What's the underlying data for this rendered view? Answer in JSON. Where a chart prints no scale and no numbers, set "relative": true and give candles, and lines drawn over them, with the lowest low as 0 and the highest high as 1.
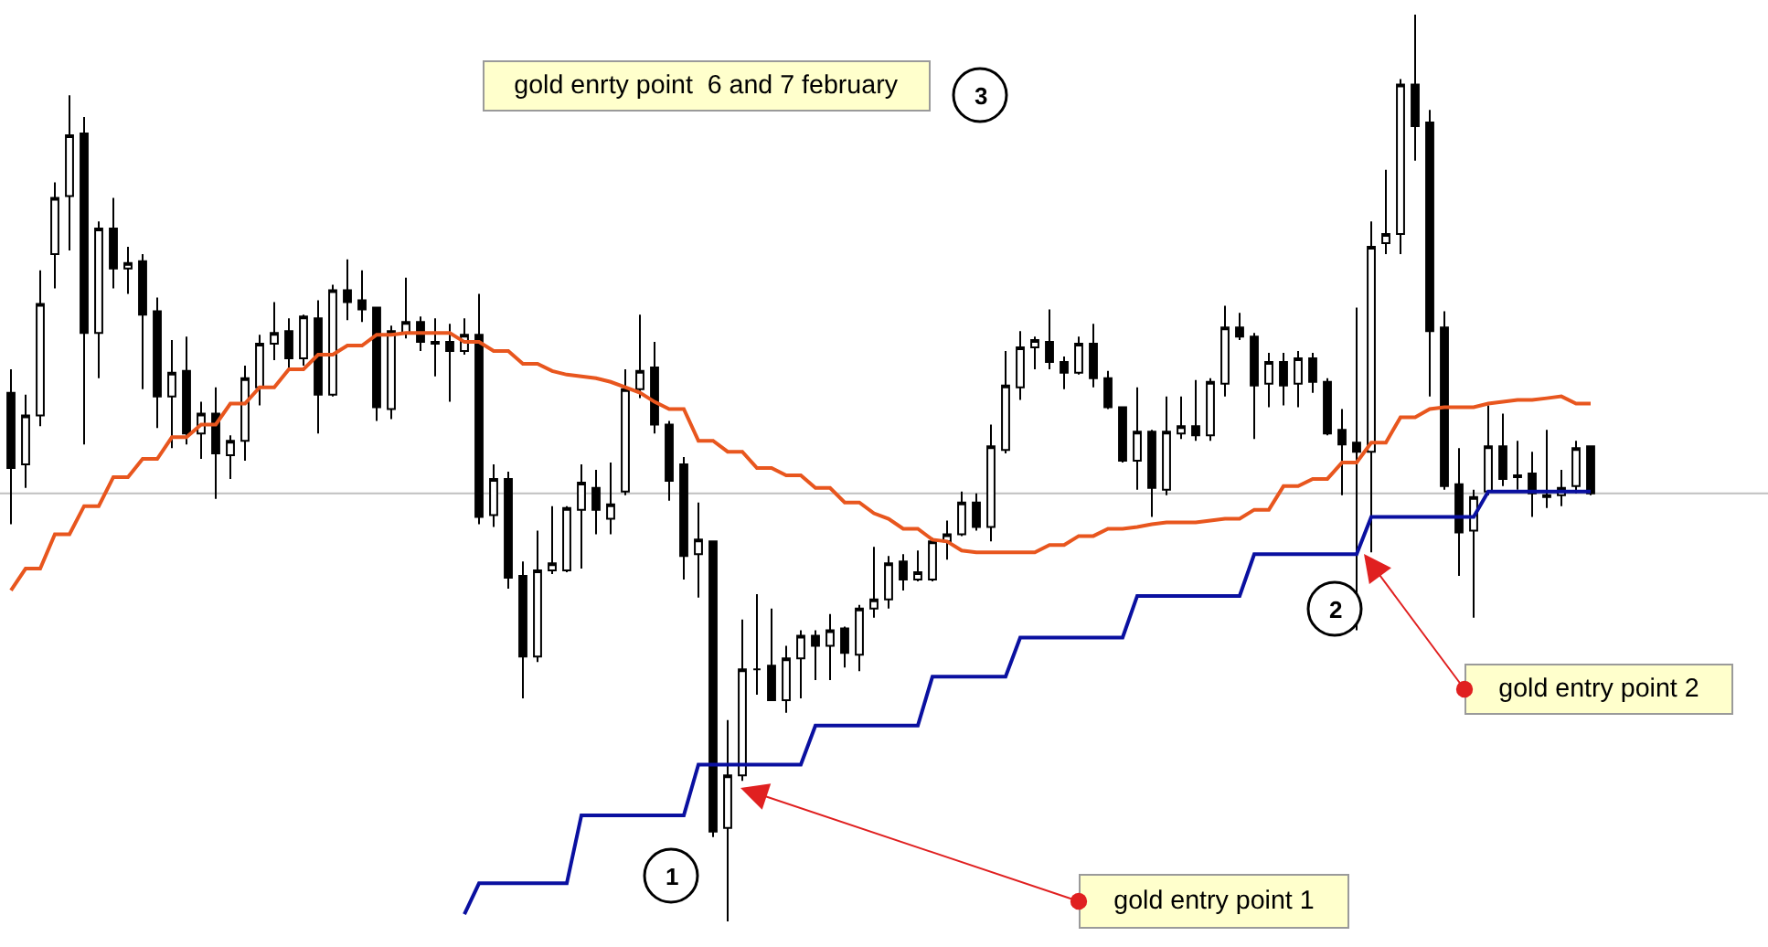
{
  "chart_data": {
    "type": "candlestick",
    "relative": true,
    "color": "#000000",
    "categories": [
      null,
      null,
      null,
      null,
      null,
      null,
      null,
      null,
      null,
      null,
      null,
      null,
      null,
      null,
      null,
      null,
      null,
      null,
      null,
      null,
      null,
      null,
      null,
      null,
      null,
      null,
      null,
      null,
      null,
      null,
      null,
      null,
      null,
      null,
      null,
      null,
      null,
      null,
      null,
      null,
      null,
      null,
      null,
      null,
      null,
      null,
      null,
      null,
      null,
      null,
      null,
      null,
      null,
      null,
      null,
      null,
      null,
      null,
      null,
      null,
      null,
      null,
      null,
      null,
      null,
      null,
      null,
      null,
      null,
      null,
      null,
      null,
      null,
      null,
      null,
      null,
      null,
      null,
      null,
      null,
      null,
      null,
      null,
      null,
      null,
      null,
      null,
      null,
      null,
      null,
      null,
      null,
      null,
      null,
      null,
      null,
      null,
      null,
      null,
      null,
      null,
      null,
      null,
      null,
      null,
      null,
      null,
      null,
      null
    ],
    "ohlc": [
      [
        0.583,
        0.609,
        0.438,
        0.5
      ],
      [
        0.504,
        0.581,
        0.478,
        0.558
      ],
      [
        0.558,
        0.718,
        0.546,
        0.681
      ],
      [
        0.736,
        0.815,
        0.698,
        0.798
      ],
      [
        0.8,
        0.911,
        0.74,
        0.867
      ],
      [
        0.869,
        0.887,
        0.526,
        0.649
      ],
      [
        0.649,
        0.772,
        0.599,
        0.764
      ],
      [
        0.764,
        0.798,
        0.698,
        0.72
      ],
      [
        0.72,
        0.744,
        0.692,
        0.726
      ],
      [
        0.728,
        0.736,
        0.587,
        0.669
      ],
      [
        0.673,
        0.688,
        0.544,
        0.579
      ],
      [
        0.579,
        0.641,
        0.522,
        0.605
      ],
      [
        0.607,
        0.645,
        0.526,
        0.538
      ],
      [
        0.538,
        0.573,
        0.51,
        0.56
      ],
      [
        0.56,
        0.589,
        0.466,
        0.516
      ],
      [
        0.514,
        0.536,
        0.488,
        0.53
      ],
      [
        0.53,
        0.613,
        0.508,
        0.599
      ],
      [
        0.589,
        0.647,
        0.569,
        0.637
      ],
      [
        0.637,
        0.683,
        0.619,
        0.649
      ],
      [
        0.651,
        0.665,
        0.609,
        0.621
      ],
      [
        0.621,
        0.669,
        0.613,
        0.667
      ],
      [
        0.665,
        0.685,
        0.538,
        0.581
      ],
      [
        0.581,
        0.702,
        0.579,
        0.696
      ],
      [
        0.696,
        0.73,
        0.663,
        0.683
      ],
      [
        0.685,
        0.718,
        0.661,
        0.675
      ],
      [
        0.677,
        0.677,
        0.552,
        0.567
      ],
      [
        0.565,
        0.657,
        0.554,
        0.651
      ],
      [
        0.649,
        0.71,
        0.643,
        0.661
      ],
      [
        0.661,
        0.667,
        0.629,
        0.639
      ],
      [
        0.639,
        0.665,
        0.601,
        0.637
      ],
      [
        0.639,
        0.659,
        0.573,
        0.629
      ],
      [
        0.629,
        0.665,
        0.625,
        0.647
      ],
      [
        0.647,
        0.692,
        0.438,
        0.446
      ],
      [
        0.448,
        0.504,
        0.435,
        0.488
      ],
      [
        0.488,
        0.496,
        0.367,
        0.379
      ],
      [
        0.381,
        0.397,
        0.246,
        0.292
      ],
      [
        0.292,
        0.431,
        0.286,
        0.387
      ],
      [
        0.387,
        0.458,
        0.383,
        0.395
      ],
      [
        0.387,
        0.458,
        0.385,
        0.456
      ],
      [
        0.454,
        0.504,
        0.389,
        0.484
      ],
      [
        0.478,
        0.498,
        0.427,
        0.454
      ],
      [
        0.444,
        0.506,
        0.427,
        0.46
      ],
      [
        0.474,
        0.609,
        0.47,
        0.587
      ],
      [
        0.587,
        0.669,
        0.577,
        0.607
      ],
      [
        0.611,
        0.639,
        0.538,
        0.548
      ],
      [
        0.548,
        0.552,
        0.464,
        0.486
      ],
      [
        0.504,
        0.512,
        0.377,
        0.403
      ],
      [
        0.405,
        0.462,
        0.357,
        0.421
      ],
      [
        0.419,
        0.419,
        0.093,
        0.099
      ],
      [
        0.103,
        0.222,
        0,
        0.161
      ],
      [
        0.161,
        0.333,
        0.155,
        0.278
      ],
      [
        0.278,
        0.361,
        0.25,
        0.278
      ],
      [
        0.282,
        0.345,
        0.244,
        0.244
      ],
      [
        0.244,
        0.304,
        0.23,
        0.29
      ],
      [
        0.29,
        0.321,
        0.246,
        0.315
      ],
      [
        0.315,
        0.321,
        0.266,
        0.304
      ],
      [
        0.304,
        0.339,
        0.266,
        0.321
      ],
      [
        0.323,
        0.325,
        0.28,
        0.296
      ],
      [
        0.294,
        0.349,
        0.276,
        0.345
      ],
      [
        0.345,
        0.413,
        0.335,
        0.355
      ],
      [
        0.355,
        0.403,
        0.345,
        0.395
      ],
      [
        0.397,
        0.405,
        0.365,
        0.377
      ],
      [
        0.377,
        0.409,
        0.375,
        0.385
      ],
      [
        0.377,
        0.423,
        0.375,
        0.419
      ],
      [
        0.419,
        0.442,
        0.399,
        0.427
      ],
      [
        0.427,
        0.474,
        0.425,
        0.462
      ],
      [
        0.462,
        0.472,
        0.431,
        0.435
      ],
      [
        0.435,
        0.548,
        0.419,
        0.524
      ],
      [
        0.52,
        0.629,
        0.516,
        0.591
      ],
      [
        0.589,
        0.651,
        0.575,
        0.633
      ],
      [
        0.633,
        0.645,
        0.609,
        0.641
      ],
      [
        0.639,
        0.675,
        0.609,
        0.617
      ],
      [
        0.617,
        0.623,
        0.587,
        0.605
      ],
      [
        0.605,
        0.645,
        0.603,
        0.637
      ],
      [
        0.637,
        0.659,
        0.589,
        0.599
      ],
      [
        0.599,
        0.607,
        0.565,
        0.567
      ],
      [
        0.567,
        0.567,
        0.506,
        0.508
      ],
      [
        0.508,
        0.589,
        0.476,
        0.54
      ],
      [
        0.54,
        0.542,
        0.446,
        0.478
      ],
      [
        0.476,
        0.579,
        0.47,
        0.54
      ],
      [
        0.538,
        0.579,
        0.532,
        0.546
      ],
      [
        0.546,
        0.597,
        0.53,
        0.536
      ],
      [
        0.536,
        0.599,
        0.53,
        0.595
      ],
      [
        0.593,
        0.679,
        0.579,
        0.655
      ],
      [
        0.655,
        0.671,
        0.641,
        0.645
      ],
      [
        0.645,
        0.649,
        0.532,
        0.591
      ],
      [
        0.593,
        0.627,
        0.567,
        0.617
      ],
      [
        0.617,
        0.627,
        0.569,
        0.591
      ],
      [
        0.593,
        0.629,
        0.567,
        0.621
      ],
      [
        0.621,
        0.627,
        0.583,
        0.595
      ],
      [
        0.595,
        0.599,
        0.536,
        0.538
      ],
      [
        0.542,
        0.565,
        0.47,
        0.526
      ],
      [
        0.528,
        0.677,
        0.321,
        0.518
      ],
      [
        0.518,
        0.772,
        0.407,
        0.744
      ],
      [
        0.748,
        0.829,
        0.736,
        0.758
      ],
      [
        0.758,
        0.929,
        0.736,
        0.923
      ],
      [
        0.923,
        1,
        0.839,
        0.877
      ],
      [
        0.881,
        0.895,
        0.579,
        0.651
      ],
      [
        0.655,
        0.673,
        0.476,
        0.48
      ],
      [
        0.482,
        0.522,
        0.381,
        0.429
      ],
      [
        0.431,
        0.476,
        0.335,
        0.468
      ],
      [
        0.474,
        0.569,
        0.47,
        0.524
      ],
      [
        0.524,
        0.56,
        0.48,
        0.488
      ],
      [
        0.492,
        0.53,
        0.476,
        0.49
      ],
      [
        0.494,
        0.518,
        0.446,
        0.472
      ],
      [
        0.47,
        0.542,
        0.456,
        0.468
      ],
      [
        0.47,
        0.498,
        0.458,
        0.478
      ],
      [
        0.48,
        0.53,
        0.472,
        0.522
      ],
      [
        0.524,
        0.524,
        0.47,
        0.472
      ]
    ],
    "series": [
      {
        "type": "line",
        "color": "#e8561e",
        "values": [
          0.365,
          0.389,
          0.389,
          0.427,
          0.427,
          0.458,
          0.458,
          0.49,
          0.49,
          0.51,
          0.51,
          0.534,
          0.534,
          0.548,
          0.548,
          0.571,
          0.571,
          0.589,
          0.589,
          0.609,
          0.609,
          0.625,
          0.625,
          0.635,
          0.635,
          0.647,
          0.647,
          0.649,
          0.649,
          0.649,
          0.649,
          0.639,
          0.639,
          0.629,
          0.629,
          0.615,
          0.615,
          0.607,
          0.603,
          0.601,
          0.599,
          0.595,
          0.589,
          0.583,
          0.573,
          0.565,
          0.565,
          0.53,
          0.53,
          0.518,
          0.518,
          0.5,
          0.5,
          0.492,
          0.492,
          0.478,
          0.478,
          0.462,
          0.462,
          0.45,
          0.444,
          0.433,
          0.433,
          0.421,
          0.419,
          0.409,
          0.407,
          0.407,
          0.407,
          0.407,
          0.407,
          0.415,
          0.415,
          0.425,
          0.425,
          0.433,
          0.433,
          0.435,
          0.438,
          0.44,
          0.44,
          0.44,
          0.442,
          0.444,
          0.444,
          0.454,
          0.454,
          0.48,
          0.48,
          0.488,
          0.488,
          0.506,
          0.506,
          0.528,
          0.528,
          0.556,
          0.556,
          0.565,
          0.567,
          0.567,
          0.567,
          0.571,
          0.573,
          0.575,
          0.575,
          0.577,
          0.579,
          0.571,
          0.571
        ]
      },
      {
        "type": "line",
        "color": "#0a10a0",
        "values": [
          null,
          null,
          null,
          null,
          null,
          null,
          null,
          null,
          null,
          null,
          null,
          null,
          null,
          null,
          null,
          null,
          null,
          null,
          null,
          null,
          null,
          null,
          null,
          null,
          null,
          null,
          null,
          null,
          null,
          null,
          null,
          0.008,
          0.042,
          0.042,
          0.042,
          0.042,
          0.042,
          0.042,
          0.042,
          0.117,
          0.117,
          0.117,
          0.117,
          0.117,
          0.117,
          0.117,
          0.117,
          0.173,
          0.173,
          0.173,
          0.173,
          0.173,
          0.173,
          0.173,
          0.173,
          0.216,
          0.216,
          0.216,
          0.216,
          0.216,
          0.216,
          0.216,
          0.216,
          0.27,
          0.27,
          0.27,
          0.27,
          0.27,
          0.27,
          0.313,
          0.313,
          0.313,
          0.313,
          0.313,
          0.313,
          0.313,
          0.313,
          0.359,
          0.359,
          0.359,
          0.359,
          0.359,
          0.359,
          0.359,
          0.359,
          0.405,
          0.405,
          0.405,
          0.405,
          0.405,
          0.405,
          0.405,
          0.405,
          0.446,
          0.446,
          0.446,
          0.446,
          0.446,
          0.446,
          0.446,
          0.446,
          0.474,
          0.474,
          0.474,
          0.474,
          0.474,
          0.474,
          0.474,
          0.474
        ]
      }
    ],
    "ref_lines": [
      {
        "axis": "y",
        "value": 0.472,
        "color": "#c0c0c0"
      }
    ],
    "annotations": [
      "gold enrty point  6 and 7 february",
      "3",
      "1",
      "2",
      "gold entry point 1",
      "gold entry point 2"
    ]
  }
}
